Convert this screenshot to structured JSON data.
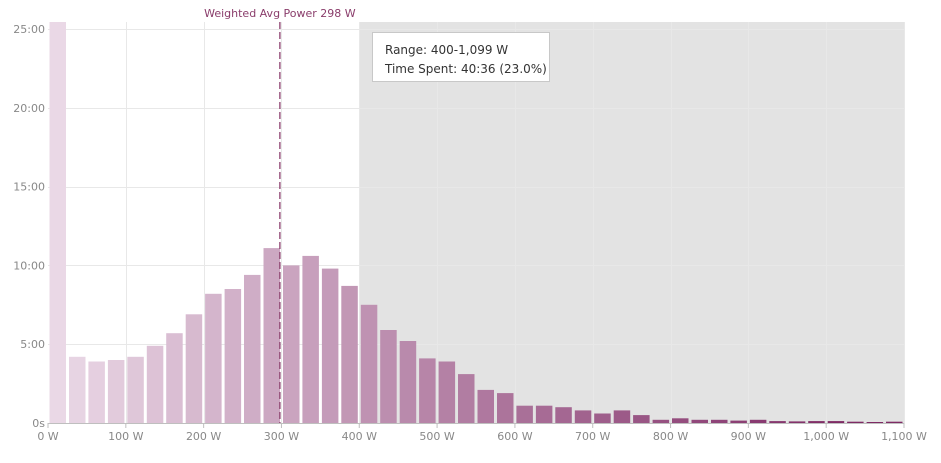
{
  "chart_data": {
    "type": "bar",
    "title": "",
    "xlabel": "",
    "ylabel": "",
    "bin_width_w": 25,
    "xlim": [
      0,
      1100
    ],
    "ylim_minutes": [
      0,
      25
    ],
    "x_ticks": [
      "0 W",
      "100 W",
      "200 W",
      "300 W",
      "400 W",
      "500 W",
      "600 W",
      "700 W",
      "800 W",
      "900 W",
      "1,000 W",
      "1,100 W"
    ],
    "x_tick_values": [
      0,
      100,
      200,
      300,
      400,
      500,
      600,
      700,
      800,
      900,
      1000,
      1100
    ],
    "y_ticks": [
      "0s",
      "5:00",
      "10:00",
      "15:00",
      "20:00",
      "25:00"
    ],
    "y_tick_values": [
      0,
      5,
      10,
      15,
      20,
      25
    ],
    "bin_start_w": [
      0,
      25,
      50,
      75,
      100,
      125,
      150,
      175,
      200,
      225,
      250,
      275,
      300,
      325,
      350,
      375,
      400,
      425,
      450,
      475,
      500,
      525,
      550,
      575,
      600,
      625,
      650,
      675,
      700,
      725,
      750,
      775,
      800,
      825,
      850,
      875,
      900,
      925,
      950,
      975,
      1000,
      1025,
      1050,
      1075
    ],
    "values_minutes": [
      25.5,
      4.2,
      3.9,
      4.0,
      4.2,
      4.9,
      5.7,
      6.9,
      8.2,
      8.5,
      9.4,
      11.1,
      10.0,
      10.6,
      9.8,
      8.7,
      7.5,
      5.9,
      5.2,
      4.1,
      3.9,
      3.1,
      2.1,
      1.9,
      1.1,
      1.1,
      1.0,
      0.8,
      0.6,
      0.8,
      0.5,
      0.2,
      0.3,
      0.2,
      0.2,
      0.15,
      0.2,
      0.12,
      0.1,
      0.12,
      0.12,
      0.08,
      0.05,
      0.08
    ],
    "reference_line": {
      "label": "Weighted Avg Power 298 W",
      "value_w": 298
    },
    "highlight_range_w": [
      400,
      1099
    ],
    "tooltip": {
      "range": "Range: 400-1,099 W",
      "time_spent": "Time Spent: 40:36 (23.0%)"
    },
    "colors": {
      "bar_light": "#ead8e6",
      "bar_dark": "#7e2a64",
      "highlight_band": "#e3e3e3",
      "grid": "#e8e8e8",
      "ref_line": "#8a3d6b"
    }
  }
}
